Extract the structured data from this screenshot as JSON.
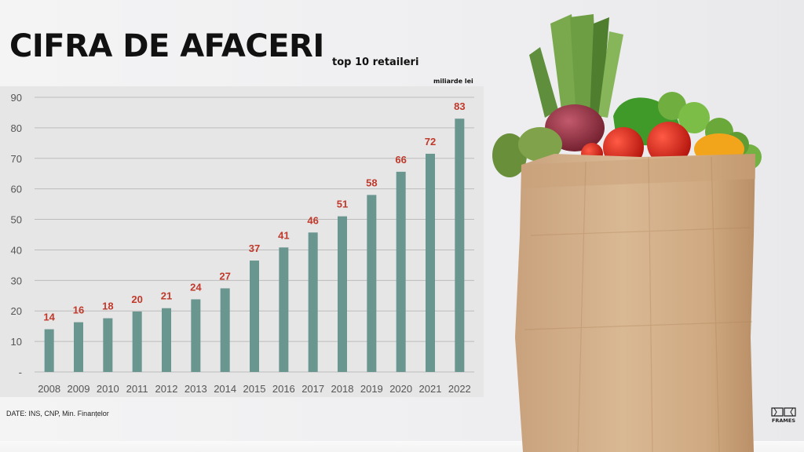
{
  "header": {
    "title": "CIFRA DE AFACERI",
    "subtitle": "top 10 retaileri",
    "unit": "miliarde lei"
  },
  "footer": {
    "source": "DATE: INS, CNP, Min. Finanțelor",
    "logo_text": "FRAMES"
  },
  "colors": {
    "bar": "#6a9690",
    "data_label": "#c0392b",
    "grid": "#bcbcbc",
    "chart_background": "#e6e6e6"
  },
  "photo": {
    "subject": "paper-grocery-bag-with-vegetables"
  },
  "chart_data": {
    "type": "bar",
    "title": "CIFRA DE AFACERI",
    "subtitle": "top 10 retaileri",
    "ylabel": "miliarde lei",
    "categories": [
      "2008",
      "2009",
      "2010",
      "2011",
      "2012",
      "2013",
      "2014",
      "2015",
      "2016",
      "2017",
      "2018",
      "2019",
      "2020",
      "2021",
      "2022"
    ],
    "values": [
      14,
      16.3,
      17.6,
      19.8,
      20.9,
      23.8,
      27.4,
      36.5,
      40.8,
      45.7,
      51,
      58,
      65.6,
      71.5,
      83
    ],
    "data_labels": [
      "14",
      "16",
      "18",
      "20",
      "21",
      "24",
      "27",
      "37",
      "41",
      "46",
      "51",
      "58",
      "66",
      "72",
      "83"
    ],
    "yticks": [
      "-",
      "10",
      "20",
      "30",
      "40",
      "50",
      "60",
      "70",
      "80",
      "90"
    ],
    "ylim": [
      0,
      90
    ],
    "grid": true,
    "legend": "none"
  }
}
